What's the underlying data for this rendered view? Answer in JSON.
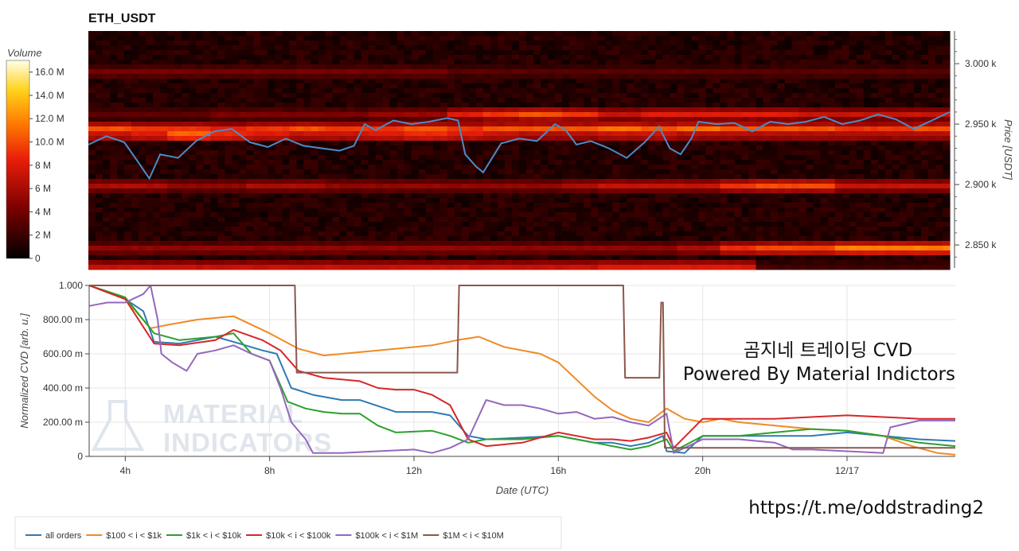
{
  "chart_title": "ETH_USDT",
  "colorbar": {
    "title": "Volume",
    "ticks": [
      "16.0 M",
      "14.0 M",
      "12.0 M",
      "10.0 M",
      "8 M",
      "6 M",
      "4 M",
      "2 M",
      "0"
    ],
    "tick_values": [
      16,
      14,
      12,
      10,
      8,
      6,
      4,
      2,
      0
    ],
    "max": 17
  },
  "overlay_text": {
    "line1": "곰지네 트레이딩 CVD",
    "line2": "Powered By Material Indictors"
  },
  "watermark": {
    "line1": "MATERIAL",
    "line2": "INDICATORS"
  },
  "footer_url": "https://t.me/oddstrading2",
  "colors": {
    "all_orders": "#2e7ab5",
    "s100_1k": "#f08a24",
    "s1k_10k": "#2ca02c",
    "s10k_100k": "#d62728",
    "s100k_1m": "#9467bd",
    "s1m_10m": "#8c564b",
    "price_line": "#4a8cc7"
  },
  "chart_data": [
    {
      "type": "heatmap",
      "title": "ETH_USDT",
      "ylabel": "Price [USDT]",
      "y_ticks": [
        "3.000 k",
        "2.950 k",
        "2.900 k",
        "2.850 k"
      ],
      "y_tick_values": [
        3000,
        2950,
        2900,
        2850
      ],
      "ylim": [
        2831,
        3027
      ],
      "x_range_hours": [
        3.0,
        27.0
      ],
      "colorscale": "black-red-orange-yellow-white",
      "bands": [
        {
          "price": 2943,
          "level": [
            8,
            9,
            12,
            10,
            9,
            8,
            8,
            9,
            10,
            9,
            8,
            7,
            7,
            8,
            8,
            7,
            7,
            7,
            7,
            7,
            7,
            7
          ]
        },
        {
          "price": 2948,
          "level": [
            10,
            9,
            9,
            8,
            9,
            10,
            9,
            9,
            10,
            9,
            10,
            10,
            10,
            11,
            10,
            11,
            10,
            10,
            10,
            9,
            9,
            10
          ]
        },
        {
          "price": 2960,
          "level": [
            3,
            3,
            3,
            4,
            4,
            4,
            4,
            5,
            5,
            8,
            9,
            10,
            9,
            7,
            8,
            8,
            8,
            8,
            7,
            7,
            7,
            7
          ]
        },
        {
          "price": 2901,
          "level": [
            6,
            6,
            5,
            5,
            6,
            6,
            5,
            5,
            5,
            5,
            5,
            5,
            6,
            7,
            7,
            7,
            9,
            10,
            10,
            7,
            7,
            7
          ]
        },
        {
          "price": 2849,
          "level": [
            5,
            5,
            5,
            5,
            5,
            5,
            5,
            5,
            5,
            5,
            5,
            5,
            5,
            5,
            5,
            6,
            9,
            10,
            10,
            12,
            12,
            12
          ]
        },
        {
          "price": 2834,
          "level": [
            7,
            7,
            7,
            7,
            7,
            7,
            7,
            7,
            7,
            7,
            7,
            7,
            7,
            8,
            8,
            8,
            8,
            2,
            2,
            2,
            2,
            2
          ]
        },
        {
          "price": 2995,
          "level": [
            4,
            4,
            4,
            4,
            4,
            4,
            4,
            4,
            4,
            3,
            3,
            3,
            3,
            3,
            3,
            3,
            3,
            3,
            3,
            3,
            3,
            3
          ]
        }
      ],
      "price_series": {
        "name": "price",
        "x": [
          3.0,
          3.5,
          4.0,
          4.4,
          4.7,
          5.0,
          5.5,
          6.0,
          6.5,
          7.0,
          7.5,
          8.0,
          8.5,
          9.0,
          9.5,
          10.0,
          10.4,
          10.7,
          11.0,
          11.5,
          12.0,
          12.5,
          13.0,
          13.3,
          13.5,
          13.8,
          14.0,
          14.5,
          15.0,
          15.5,
          16.0,
          16.3,
          16.6,
          17.0,
          17.5,
          18.0,
          18.5,
          18.9,
          19.2,
          19.5,
          19.8,
          20.0,
          20.5,
          21.0,
          21.5,
          22.0,
          22.5,
          23.0,
          23.5,
          24.0,
          24.5,
          25.0,
          25.5,
          26.0,
          26.5,
          27.0
        ],
        "y": [
          2933,
          2940,
          2935,
          2918,
          2905,
          2925,
          2922,
          2936,
          2944,
          2946,
          2935,
          2931,
          2938,
          2932,
          2930,
          2928,
          2932,
          2950,
          2945,
          2953,
          2950,
          2952,
          2955,
          2953,
          2925,
          2915,
          2910,
          2934,
          2938,
          2936,
          2950,
          2945,
          2933,
          2936,
          2930,
          2922,
          2935,
          2948,
          2930,
          2925,
          2938,
          2952,
          2950,
          2951,
          2944,
          2952,
          2950,
          2952,
          2956,
          2950,
          2953,
          2958,
          2954,
          2946,
          2953,
          2960
        ]
      }
    },
    {
      "type": "line",
      "xlabel": "Date (UTC)",
      "ylabel": "Normalized CVD [arb. u.]",
      "ylim": [
        0,
        1.0
      ],
      "y_ticks": [
        "0",
        "200.00 m",
        "400.00 m",
        "600.00 m",
        "800.00 m",
        "1.000"
      ],
      "y_tick_values": [
        0,
        0.2,
        0.4,
        0.6,
        0.8,
        1.0
      ],
      "x_range_hours": [
        3.0,
        27.0
      ],
      "x_ticks": [
        "4h",
        "8h",
        "12h",
        "16h",
        "20h",
        "12/17"
      ],
      "x_tick_values": [
        4,
        8,
        12,
        16,
        20,
        24
      ],
      "legend_position": "bottom",
      "series": [
        {
          "name": "all orders",
          "color_key": "all_orders",
          "x": [
            3.0,
            4.0,
            4.5,
            4.8,
            5.5,
            6.5,
            7.0,
            7.8,
            8.2,
            8.6,
            9.2,
            10.0,
            10.5,
            11.5,
            12.5,
            13.0,
            13.5,
            14.0,
            15.0,
            16.0,
            16.5,
            17.0,
            17.5,
            18.0,
            18.5,
            18.9,
            19.0,
            19.5,
            20.0,
            21.0,
            22.0,
            23.0,
            24.0,
            25.0,
            26.0,
            27.0
          ],
          "y": [
            1.0,
            0.92,
            0.85,
            0.67,
            0.66,
            0.7,
            0.67,
            0.62,
            0.6,
            0.4,
            0.36,
            0.33,
            0.33,
            0.26,
            0.26,
            0.24,
            0.12,
            0.1,
            0.11,
            0.12,
            0.1,
            0.08,
            0.08,
            0.06,
            0.08,
            0.12,
            0.03,
            0.02,
            0.12,
            0.12,
            0.12,
            0.12,
            0.14,
            0.12,
            0.1,
            0.09
          ]
        },
        {
          "name": "$100 < i < $1k",
          "color_key": "s100_1k",
          "x": [
            3.0,
            4.0,
            4.7,
            5.2,
            6.0,
            7.0,
            8.0,
            8.8,
            9.5,
            10.5,
            11.5,
            12.5,
            13.2,
            13.8,
            14.5,
            15.5,
            16.0,
            17.0,
            17.5,
            18.0,
            18.5,
            19.0,
            19.5,
            20.0,
            20.5,
            21.0,
            22.0,
            23.0,
            24.0,
            25.0,
            25.8,
            26.5,
            27.0
          ],
          "y": [
            1.0,
            0.92,
            0.75,
            0.77,
            0.8,
            0.82,
            0.72,
            0.63,
            0.59,
            0.61,
            0.63,
            0.65,
            0.68,
            0.7,
            0.64,
            0.6,
            0.55,
            0.35,
            0.27,
            0.22,
            0.2,
            0.28,
            0.22,
            0.2,
            0.22,
            0.2,
            0.18,
            0.16,
            0.15,
            0.12,
            0.06,
            0.02,
            0.01
          ]
        },
        {
          "name": "$1k < i < $10k",
          "color_key": "s1k_10k",
          "x": [
            3.0,
            4.0,
            4.8,
            5.5,
            6.5,
            7.0,
            7.5,
            8.0,
            8.5,
            9.0,
            9.5,
            10.0,
            10.5,
            11.0,
            11.5,
            12.5,
            13.0,
            13.5,
            14.0,
            15.0,
            16.0,
            16.5,
            17.0,
            17.5,
            18.0,
            18.5,
            19.0,
            19.2,
            20.0,
            21.0,
            22.0,
            23.0,
            24.0,
            25.0,
            26.0,
            27.0
          ],
          "y": [
            1.0,
            0.93,
            0.72,
            0.68,
            0.7,
            0.72,
            0.6,
            0.56,
            0.32,
            0.28,
            0.26,
            0.25,
            0.25,
            0.18,
            0.14,
            0.15,
            0.12,
            0.08,
            0.1,
            0.1,
            0.12,
            0.1,
            0.08,
            0.06,
            0.04,
            0.06,
            0.1,
            0.03,
            0.12,
            0.12,
            0.14,
            0.16,
            0.15,
            0.12,
            0.08,
            0.06
          ]
        },
        {
          "name": "$10k < i < $100k",
          "color_key": "s10k_100k",
          "x": [
            3.0,
            4.0,
            4.8,
            5.5,
            6.5,
            7.0,
            7.8,
            8.3,
            8.8,
            9.5,
            10.0,
            10.5,
            11.0,
            11.5,
            12.0,
            12.5,
            13.0,
            13.5,
            14.0,
            15.0,
            16.0,
            16.5,
            17.0,
            17.5,
            18.0,
            18.5,
            19.0,
            19.2,
            20.0,
            21.0,
            22.0,
            23.0,
            24.0,
            25.0,
            26.0,
            27.0
          ],
          "y": [
            1.0,
            0.92,
            0.66,
            0.65,
            0.68,
            0.74,
            0.68,
            0.62,
            0.5,
            0.46,
            0.45,
            0.44,
            0.4,
            0.39,
            0.39,
            0.36,
            0.3,
            0.1,
            0.06,
            0.08,
            0.14,
            0.12,
            0.1,
            0.1,
            0.09,
            0.11,
            0.14,
            0.05,
            0.22,
            0.22,
            0.22,
            0.23,
            0.24,
            0.23,
            0.22,
            0.22
          ]
        },
        {
          "name": "$100k < i < $1M",
          "color_key": "s100k_1m",
          "x": [
            3.0,
            3.5,
            4.0,
            4.5,
            4.7,
            4.9,
            5.0,
            5.3,
            5.7,
            6.0,
            6.5,
            7.0,
            7.5,
            8.0,
            8.3,
            8.6,
            9.0,
            9.2,
            10.0,
            11.0,
            12.0,
            12.5,
            13.0,
            13.5,
            14.0,
            14.5,
            15.0,
            15.5,
            16.0,
            16.5,
            17.0,
            17.5,
            18.0,
            18.5,
            19.0,
            19.2,
            20.0,
            21.0,
            22.0,
            22.5,
            23.0,
            24.0,
            25.0,
            25.2,
            26.0,
            27.0
          ],
          "y": [
            0.88,
            0.9,
            0.9,
            0.95,
            1.0,
            0.8,
            0.6,
            0.55,
            0.5,
            0.6,
            0.62,
            0.65,
            0.6,
            0.56,
            0.4,
            0.2,
            0.1,
            0.02,
            0.02,
            0.03,
            0.04,
            0.02,
            0.05,
            0.1,
            0.33,
            0.3,
            0.3,
            0.28,
            0.25,
            0.26,
            0.22,
            0.23,
            0.2,
            0.18,
            0.25,
            0.02,
            0.1,
            0.1,
            0.08,
            0.04,
            0.04,
            0.03,
            0.02,
            0.17,
            0.21,
            0.21
          ]
        },
        {
          "name": "$1M < i < $10M",
          "color_key": "s1m_10m",
          "x": [
            3.0,
            3.6,
            4.0,
            4.7,
            4.75,
            7.8,
            8.1,
            8.7,
            8.75,
            9.0,
            12.0,
            13.0,
            13.2,
            13.25,
            15.0,
            17.8,
            17.85,
            18.8,
            18.85,
            18.9,
            18.95,
            19.0,
            19.05,
            22.0,
            27.0
          ],
          "y": [
            1.0,
            1.0,
            1.0,
            1.0,
            1.0,
            1.0,
            1.0,
            1.0,
            0.49,
            0.49,
            0.49,
            0.49,
            0.49,
            1.0,
            1.0,
            1.0,
            0.46,
            0.46,
            0.9,
            0.9,
            0.05,
            0.05,
            0.05,
            0.05,
            0.05
          ]
        }
      ]
    }
  ]
}
